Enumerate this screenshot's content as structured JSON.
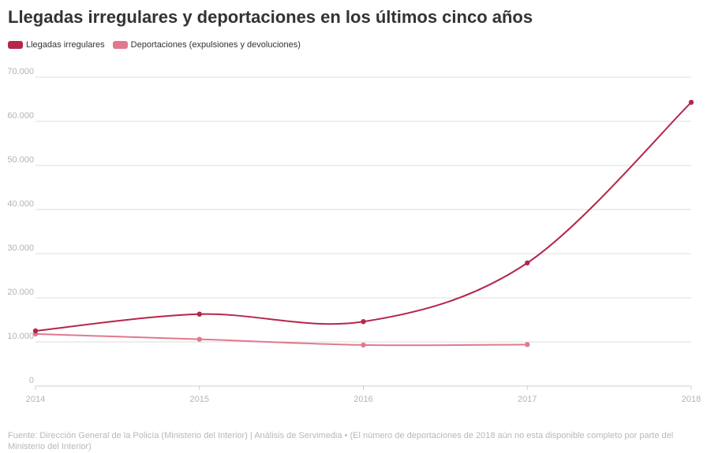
{
  "chart_data": {
    "type": "line",
    "title": "Llegadas irregulares y deportaciones en los últimos cinco años",
    "xlabel": "",
    "ylabel": "",
    "x": [
      "2014",
      "2015",
      "2016",
      "2017",
      "2018"
    ],
    "ylim": [
      0,
      70000
    ],
    "yticks": [
      "0",
      "10.000",
      "20.000",
      "30.000",
      "40.000",
      "50.000",
      "60.000",
      "70.000"
    ],
    "grid": true,
    "legend_position": "top-left",
    "series": [
      {
        "name": "Llegadas irregulares",
        "color": "#b5264a",
        "values": [
          12500,
          16300,
          14600,
          27900,
          64300
        ]
      },
      {
        "name": "Deportaciones (expulsiones y devoluciones)",
        "color": "#e0798f",
        "values": [
          11800,
          10600,
          9300,
          9400,
          null
        ]
      }
    ],
    "source": "Fuente: Dirección General de la Policía (Ministerio del Interior) | Análisis de Servimedia • (El número de deportaciones de 2018 aún no esta disponible completo por parte del Ministerio del Interior)"
  }
}
